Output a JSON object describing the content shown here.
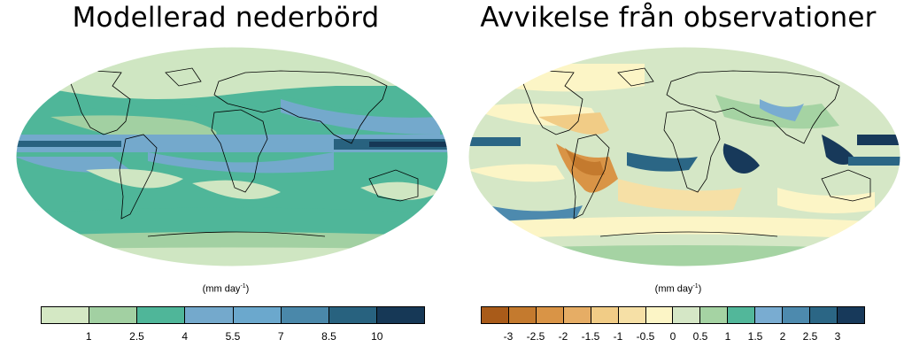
{
  "panels": [
    {
      "title": "Modellerad nederbörd",
      "units": "(mm day",
      "units_exp": "-1",
      "units_close": ")",
      "colorbar": {
        "colors": [
          "#d4e8c4",
          "#a2d0a2",
          "#4fb699",
          "#74a9cc",
          "#6ba8cd",
          "#4a88aa",
          "#28627f",
          "#163856"
        ],
        "tick_labels": [
          "1",
          "2.5",
          "4",
          "5.5",
          "7",
          "8.5",
          "10"
        ]
      }
    },
    {
      "title": "Avvikelse från observationer",
      "units": "(mm day",
      "units_exp": "-1",
      "units_close": ")",
      "colorbar": {
        "colors": [
          "#a95b19",
          "#c47a2e",
          "#d99446",
          "#e6ad65",
          "#f1cc86",
          "#f6e0a6",
          "#fcf5c6",
          "#d5e7c6",
          "#a5d3a3",
          "#52b79a",
          "#79acd1",
          "#4d8aae",
          "#2b6685",
          "#17395a"
        ],
        "tick_labels": [
          "-3",
          "-2.5",
          "-2",
          "-1.5",
          "-1",
          "-0.5",
          "0",
          "0.5",
          "1",
          "1.5",
          "2",
          "2.5",
          "3"
        ]
      }
    }
  ]
}
